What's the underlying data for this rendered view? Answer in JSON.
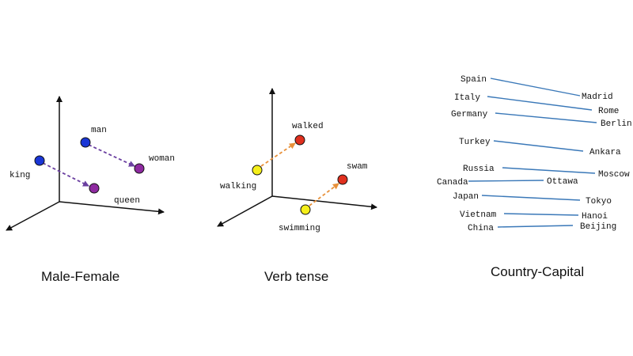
{
  "colors": {
    "axis": "#111111",
    "male_female_arrow": "#6a3fa0",
    "verb_arrow": "#e8913a",
    "country_line": "#3a78b8",
    "blue_dot": "#1a36d6",
    "purple_dot": "#8e2aa0",
    "yellow_dot": "#f5ef1a",
    "red_dot": "#e0301e"
  },
  "panels": {
    "male_female": {
      "caption": "Male-Female",
      "words": {
        "man": "man",
        "woman": "woman",
        "king": "king",
        "queen": "queen"
      }
    },
    "verb_tense": {
      "caption": "Verb tense",
      "words": {
        "walked": "walked",
        "walking": "walking",
        "swam": "swam",
        "swimming": "swimming"
      }
    },
    "country_capital": {
      "caption": "Country-Capital",
      "pairs": [
        {
          "country": "Spain",
          "capital": "Madrid"
        },
        {
          "country": "Italy",
          "capital": "Rome"
        },
        {
          "country": "Germany",
          "capital": "Berlin"
        },
        {
          "country": "Turkey",
          "capital": "Ankara"
        },
        {
          "country": "Russia",
          "capital": "Moscow"
        },
        {
          "country": "Canada",
          "capital": "Ottawa"
        },
        {
          "country": "Japan",
          "capital": "Tokyo"
        },
        {
          "country": "Vietnam",
          "capital": "Hanoi"
        },
        {
          "country": "China",
          "capital": "Beijing"
        }
      ]
    }
  }
}
